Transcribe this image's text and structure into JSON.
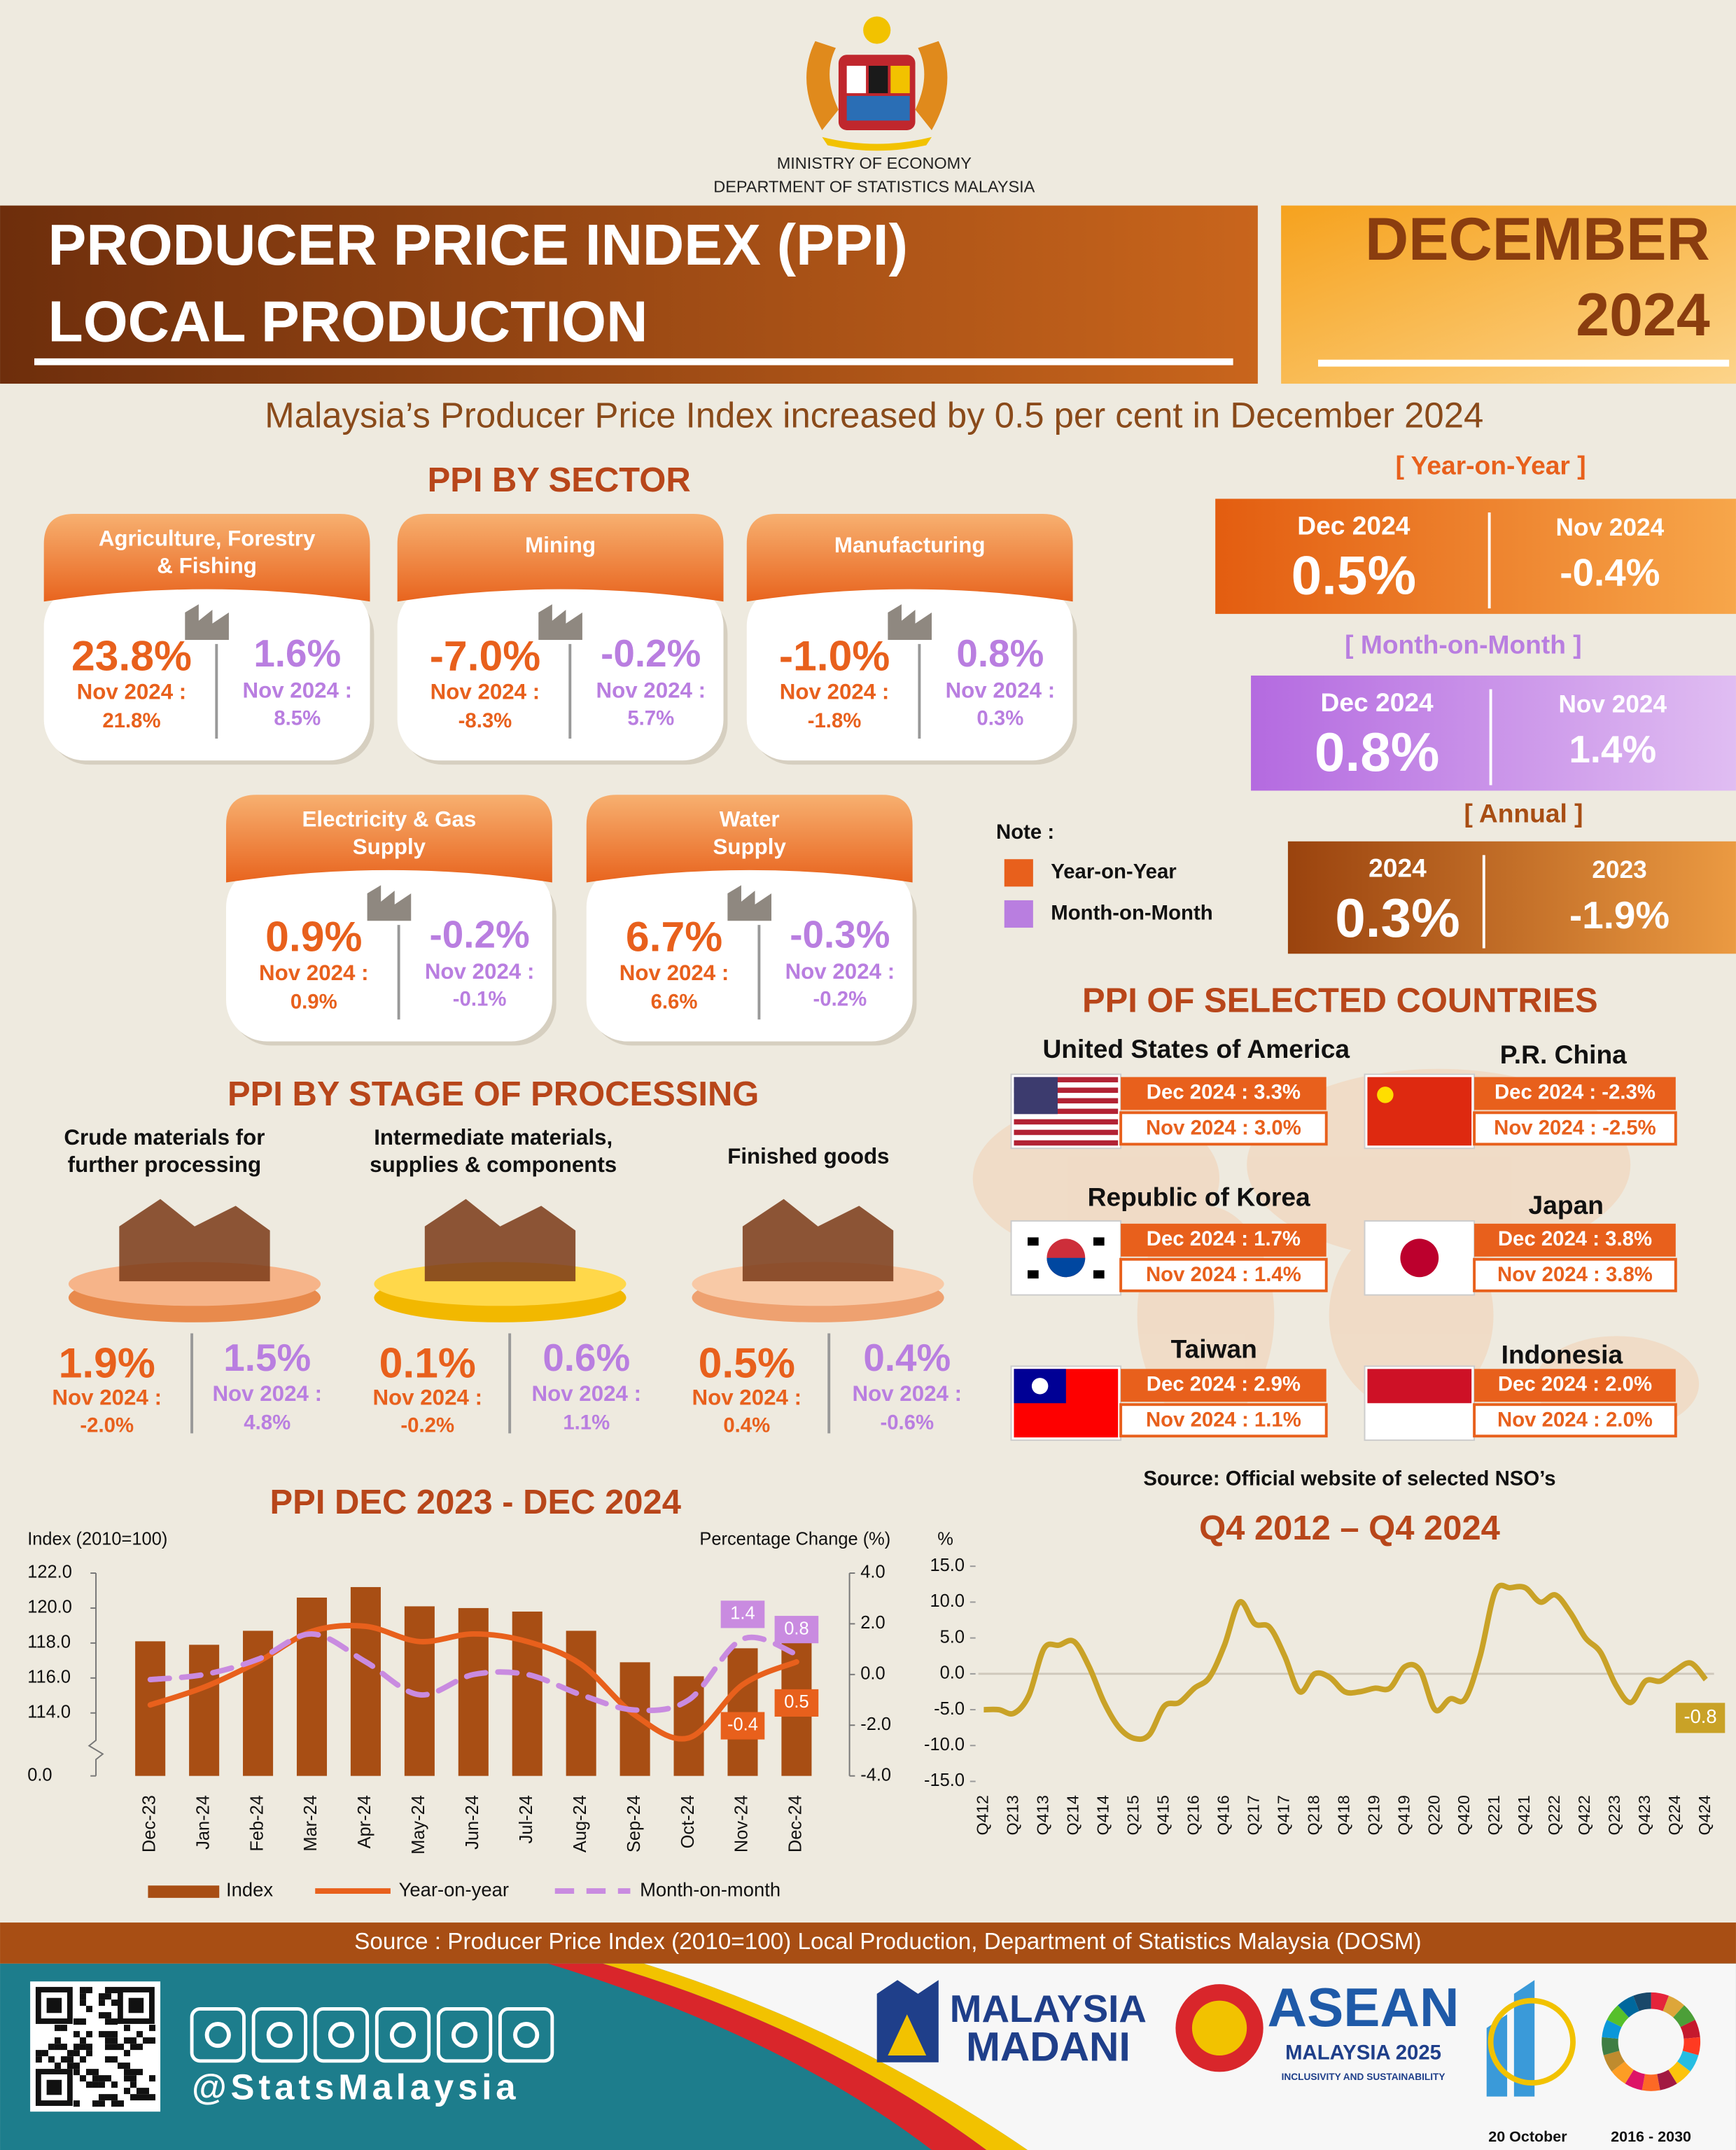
{
  "header": {
    "ministry": "MINISTRY OF ECONOMY",
    "department": "DEPARTMENT OF STATISTICS MALAYSIA",
    "title": [
      "PRODUCER PRICE INDEX (PPI)",
      "LOCAL PRODUCTION"
    ],
    "month": "DECEMBER",
    "year": "2024"
  },
  "headline": "Malaysia’s Producer Price Index increased by 0.5 per cent in December 2024",
  "sector": {
    "title": "PPI BY SECTOR",
    "items": [
      {
        "name": [
          "Agriculture, Forestry",
          "& Fishing"
        ],
        "yoy": "23.8%",
        "yoy_prev_label": "Nov 2024 :",
        "yoy_prev": "21.8%",
        "mom": "1.6%",
        "mom_prev_label": "Nov 2024 :",
        "mom_prev": "8.5%"
      },
      {
        "name": [
          "Mining"
        ],
        "yoy": "-7.0%",
        "yoy_prev_label": "Nov 2024 :",
        "yoy_prev": "-8.3%",
        "mom": "-0.2%",
        "mom_prev_label": "Nov 2024 :",
        "mom_prev": "5.7%"
      },
      {
        "name": [
          "Manufacturing"
        ],
        "yoy": "-1.0%",
        "yoy_prev_label": "Nov 2024 :",
        "yoy_prev": "-1.8%",
        "mom": "0.8%",
        "mom_prev_label": "Nov 2024 :",
        "mom_prev": "0.3%"
      },
      {
        "name": [
          "Electricity & Gas",
          "Supply"
        ],
        "yoy": "0.9%",
        "yoy_prev_label": "Nov 2024 :",
        "yoy_prev": "0.9%",
        "mom": "-0.2%",
        "mom_prev_label": "Nov 2024 :",
        "mom_prev": "-0.1%"
      },
      {
        "name": [
          "Water",
          "Supply"
        ],
        "yoy": "6.7%",
        "yoy_prev_label": "Nov 2024 :",
        "yoy_prev": "6.6%",
        "mom": "-0.3%",
        "mom_prev_label": "Nov 2024 :",
        "mom_prev": "-0.2%"
      }
    ]
  },
  "summary": {
    "boxes": [
      {
        "heading": "[ Year-on-Year ]",
        "current_label": "Dec 2024",
        "current": "0.5%",
        "previous_label": "Nov 2024",
        "previous": "-0.4%"
      },
      {
        "heading": "[ Month-on-Month ]",
        "current_label": "Dec 2024",
        "current": "0.8%",
        "previous_label": "Nov 2024",
        "previous": "1.4%"
      },
      {
        "heading": "[ Annual ]",
        "current_label": "2024",
        "current": "0.3%",
        "previous_label": "2023",
        "previous": "-1.9%"
      }
    ],
    "note": {
      "title": "Note :",
      "items": [
        "Year-on-Year",
        "Month-on-Month"
      ]
    }
  },
  "stage": {
    "title": "PPI BY STAGE OF PROCESSING",
    "items": [
      {
        "name": [
          "Crude materials for",
          "further processing"
        ],
        "yoy": "1.9%",
        "yoy_prev_label": "Nov 2024 :",
        "yoy_prev": "-2.0%",
        "mom": "1.5%",
        "mom_prev_label": "Nov 2024 :",
        "mom_prev": "4.8%"
      },
      {
        "name": [
          "Intermediate materials,",
          "supplies & components"
        ],
        "yoy": "0.1%",
        "yoy_prev_label": "Nov 2024 :",
        "yoy_prev": "-0.2%",
        "mom": "0.6%",
        "mom_prev_label": "Nov 2024 :",
        "mom_prev": "1.1%"
      },
      {
        "name": [
          "Finished goods"
        ],
        "yoy": "0.5%",
        "yoy_prev_label": "Nov 2024 :",
        "yoy_prev": "0.4%",
        "mom": "0.4%",
        "mom_prev_label": "Nov 2024 :",
        "mom_prev": "-0.6%"
      }
    ]
  },
  "countries": {
    "title": "PPI OF SELECTED COUNTRIES",
    "items": [
      {
        "name": "United States of America",
        "dec": "Dec 2024 : 3.3%",
        "nov": "Nov 2024 : 3.0%"
      },
      {
        "name": "P.R. China",
        "dec": "Dec 2024 : -2.3%",
        "nov": "Nov 2024 : -2.5%"
      },
      {
        "name": "Republic of Korea",
        "dec": "Dec 2024 : 1.7%",
        "nov": "Nov 2024 : 1.4%"
      },
      {
        "name": "Japan",
        "dec": "Dec 2024 : 3.8%",
        "nov": "Nov 2024 : 3.8%"
      },
      {
        "name": "Taiwan",
        "dec": "Dec 2024 : 2.9%",
        "nov": "Nov 2024 : 1.1%"
      },
      {
        "name": "Indonesia",
        "dec": "Dec 2024 : 2.0%",
        "nov": "Nov 2024 : 2.0%"
      }
    ],
    "source": "Source: Official website of selected NSO’s"
  },
  "chart_data": [
    {
      "type": "combo",
      "title": "PPI DEC 2023 - DEC 2024",
      "y_label": "Index (2010=100)",
      "y2_label": "Percentage Change (%)",
      "categories": [
        "Dec-23",
        "Jan-24",
        "Feb-24",
        "Mar-24",
        "Apr-24",
        "May-24",
        "Jun-24",
        "Jul-24",
        "Aug-24",
        "Sep-24",
        "Oct-24",
        "Nov-24",
        "Dec-24"
      ],
      "series": [
        {
          "name": "Index",
          "type": "bar",
          "color": "#a84e14",
          "values": [
            118.1,
            117.9,
            118.7,
            120.6,
            121.2,
            120.1,
            120.0,
            119.8,
            118.7,
            116.9,
            116.1,
            117.7,
            118.2
          ]
        },
        {
          "name": "Year-on-year",
          "type": "line",
          "axis": "y2",
          "color": "#e8601c",
          "dash": false,
          "values": [
            -1.2,
            -0.5,
            0.5,
            1.7,
            1.9,
            1.3,
            1.6,
            1.3,
            0.4,
            -1.6,
            -2.5,
            -0.4,
            0.5
          ],
          "value_labels": [
            null,
            null,
            null,
            null,
            null,
            null,
            null,
            null,
            null,
            null,
            null,
            "-0.4",
            "0.5"
          ]
        },
        {
          "name": "Month-on-month",
          "type": "line",
          "axis": "y2",
          "color": "#c98be0",
          "dash": true,
          "values": [
            -0.2,
            0.0,
            0.6,
            1.6,
            0.5,
            -0.8,
            0.0,
            0.0,
            -0.8,
            -1.4,
            -1.0,
            1.4,
            0.8
          ],
          "value_labels": [
            null,
            null,
            null,
            null,
            null,
            null,
            null,
            null,
            null,
            null,
            null,
            "1.4",
            "0.8"
          ]
        }
      ],
      "ylim": [
        110.4,
        122
      ],
      "axis_break": true,
      "yticks": [
        {
          "value": 0,
          "label": "0.0"
        },
        {
          "value": 114,
          "label": "114.0"
        },
        {
          "value": 116,
          "label": "116.0"
        },
        {
          "value": 118,
          "label": "118.0"
        },
        {
          "value": 120,
          "label": "120.0"
        },
        {
          "value": 122,
          "label": "122.0"
        }
      ],
      "y2lim": [
        -4,
        4
      ],
      "y2ticks": [
        {
          "value": 4,
          "label": "4.0"
        },
        {
          "value": 2,
          "label": "2.0"
        },
        {
          "value": 0,
          "label": "0.0"
        },
        {
          "value": -2,
          "label": "-2.0"
        },
        {
          "value": -4,
          "label": "-4.0"
        }
      ],
      "legend": "bottom",
      "grid": false
    },
    {
      "type": "line",
      "title": "Q4 2012 – Q4 2024",
      "y_label": "%",
      "color": "#c9a227",
      "categories": [
        "Q412",
        null,
        "Q213",
        null,
        "Q413",
        null,
        "Q214",
        null,
        "Q414",
        null,
        "Q215",
        null,
        "Q415",
        null,
        "Q216",
        null,
        "Q416",
        null,
        "Q217",
        null,
        "Q417",
        null,
        "Q218",
        null,
        "Q418",
        null,
        "Q219",
        null,
        "Q419",
        null,
        "Q220",
        null,
        "Q420",
        null,
        "Q221",
        null,
        "Q421",
        null,
        "Q222",
        null,
        "Q422",
        null,
        "Q223",
        null,
        "Q423",
        null,
        "Q224",
        null,
        "Q424"
      ],
      "values": [
        -5.0,
        -5.0,
        -5.5,
        -3.0,
        3.5,
        4.0,
        4.5,
        1.0,
        -4.0,
        -7.5,
        -9.0,
        -8.5,
        -4.5,
        -4.0,
        -2.0,
        -0.5,
        4.0,
        10.0,
        7.0,
        6.5,
        2.5,
        -2.5,
        0.0,
        -0.5,
        -2.5,
        -2.5,
        -2.0,
        -2.0,
        1.0,
        0.5,
        -5.0,
        -3.5,
        -3.5,
        2.5,
        11.5,
        12.0,
        12.0,
        10.0,
        11.0,
        8.5,
        5.0,
        3.0,
        -1.5,
        -4.0,
        -1.0,
        -1.0,
        0.5,
        1.5,
        -0.8
      ],
      "value_labels": [
        null,
        null,
        null,
        null,
        null,
        null,
        null,
        null,
        null,
        null,
        null,
        null,
        null,
        null,
        null,
        null,
        null,
        null,
        null,
        null,
        null,
        null,
        null,
        null,
        null,
        null,
        null,
        null,
        null,
        null,
        null,
        null,
        null,
        null,
        null,
        null,
        null,
        null,
        null,
        null,
        null,
        null,
        null,
        null,
        null,
        null,
        null,
        null,
        "-0.8"
      ],
      "ylim": [
        -15,
        15
      ],
      "yticks": [
        {
          "value": 15,
          "label": "15.0"
        },
        {
          "value": 10,
          "label": "10.0"
        },
        {
          "value": 5,
          "label": "5.0"
        },
        {
          "value": 0,
          "label": "0.0"
        },
        {
          "value": -5,
          "label": "-5.0"
        },
        {
          "value": -10,
          "label": "-10.0"
        },
        {
          "value": -15,
          "label": "-15.0"
        }
      ],
      "zero_line": true,
      "grid": false
    }
  ],
  "footer": {
    "source": "Source : Producer Price Index (2010=100) Local Production, Department of Statistics Malaysia (DOSM)",
    "handle": "@StatsMalaysia",
    "madani": [
      "MALAYSIA",
      "MADANI"
    ],
    "asean": [
      "ASEAN",
      "MALAYSIA 2025",
      "INCLUSIVITY AND SUSTAINABILITY"
    ],
    "stats_day": "20 October",
    "sdg_period": "2016 - 2030"
  }
}
